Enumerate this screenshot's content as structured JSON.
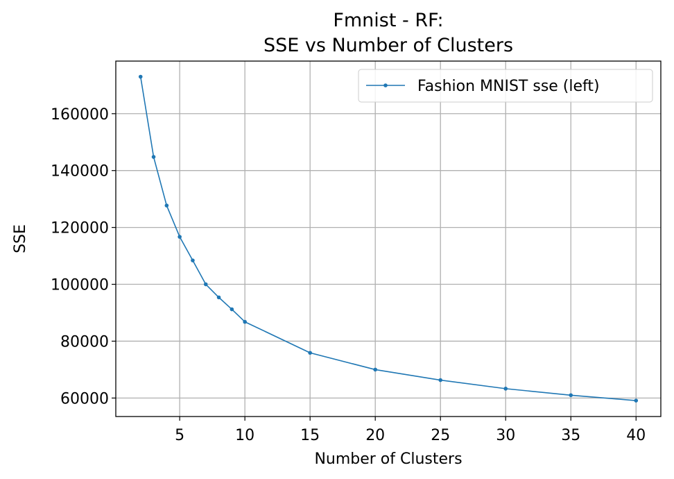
{
  "chart_data": {
    "type": "line",
    "title_line1": "Fmnist - RF:",
    "title_line2": "SSE vs Number of Clusters",
    "xlabel": "Number of Clusters",
    "ylabel": "SSE",
    "xlim": [
      0.1,
      41.9
    ],
    "ylim": [
      53500,
      178500
    ],
    "xticks": [
      5,
      10,
      15,
      20,
      25,
      30,
      35,
      40
    ],
    "yticks": [
      60000,
      80000,
      100000,
      120000,
      140000,
      160000
    ],
    "grid": true,
    "legend_position": "top-right",
    "series": [
      {
        "name": "Fashion MNIST sse (left)",
        "color": "#1f77b4",
        "x": [
          2,
          3,
          4,
          5,
          6,
          7,
          8,
          9,
          10,
          15,
          20,
          25,
          30,
          35,
          40
        ],
        "y": [
          173000,
          144800,
          127700,
          116700,
          108400,
          100000,
          95400,
          91200,
          86800,
          75900,
          70000,
          66300,
          63300,
          61000,
          59100
        ]
      }
    ]
  }
}
